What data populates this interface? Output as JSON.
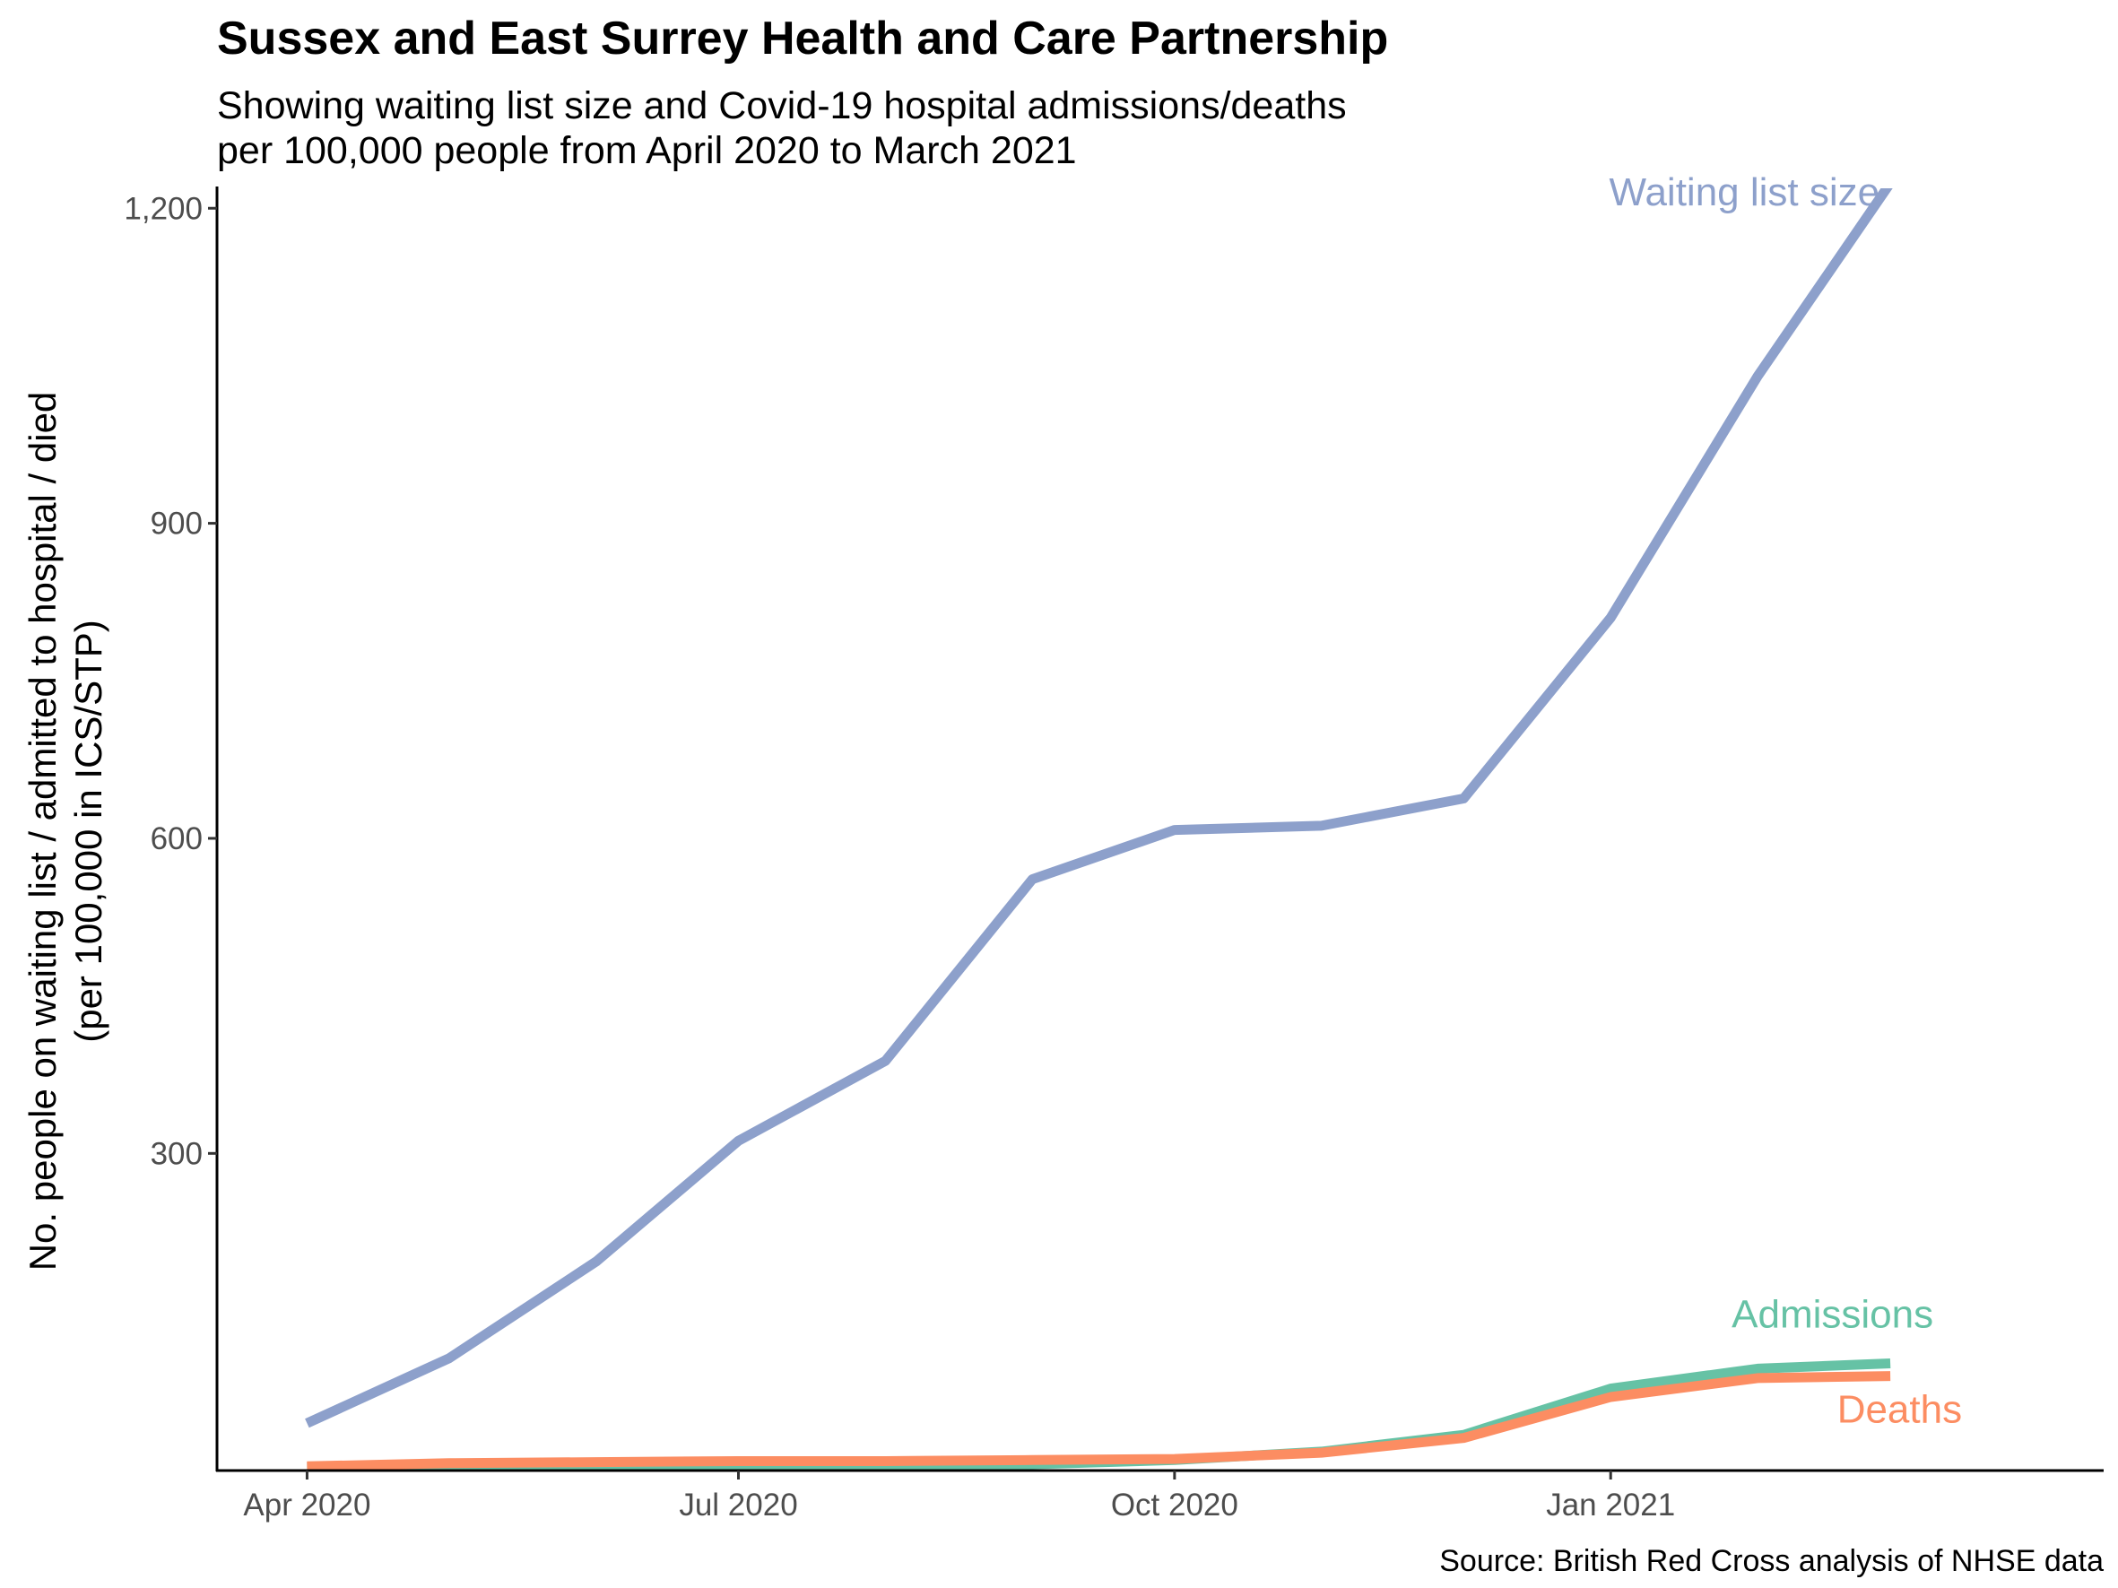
{
  "chart_data": {
    "type": "line",
    "title": "Sussex and East Surrey Health and Care Partnership",
    "subtitle_lines": [
      "Showing waiting list size and Covid-19 hospital admissions/deaths",
      "per 100,000 people from April 2020 to March 2021"
    ],
    "ylabel_lines": [
      "No. people on waiting list / admitted to hospital / died",
      "(per 100,000 in ICS/STP)"
    ],
    "xlabel": "",
    "caption": "Source: British Red Cross analysis of NHSE data",
    "x": [
      "2020-04",
      "2020-05",
      "2020-06",
      "2020-07",
      "2020-08",
      "2020-09",
      "2020-10",
      "2020-11",
      "2020-12",
      "2021-01",
      "2021-02",
      "2021-03"
    ],
    "x_ticks": [
      {
        "value": "2020-04",
        "label": "Apr 2020"
      },
      {
        "value": "2020-07",
        "label": "Jul 2020"
      },
      {
        "value": "2020-10",
        "label": "Oct 2020"
      },
      {
        "value": "2021-01",
        "label": "Jan 2021"
      }
    ],
    "y_ticks": [
      300,
      600,
      900,
      1200
    ],
    "y_tick_labels": [
      "300",
      "600",
      "900",
      "1,200"
    ],
    "xlim": [
      "2020-03-13",
      "2021-04-15"
    ],
    "ylim": [
      -2,
      1219
    ],
    "grid": false,
    "legend": "direct labels at line ends",
    "series": [
      {
        "name": "Waiting list size",
        "color": "#8DA0CB",
        "values": [
          43,
          105,
          197,
          312,
          388,
          561,
          608,
          612,
          638,
          810,
          1040,
          1224
        ]
      },
      {
        "name": "Admissions",
        "color": "#66C2A5",
        "values": [
          1,
          2,
          3,
          3,
          3,
          4,
          8,
          16,
          32,
          76,
          95,
          100
        ]
      },
      {
        "name": "Deaths",
        "color": "#FC8D62",
        "values": [
          2,
          5,
          6,
          7,
          7,
          8,
          9,
          15,
          29,
          68,
          86,
          88
        ]
      }
    ]
  }
}
